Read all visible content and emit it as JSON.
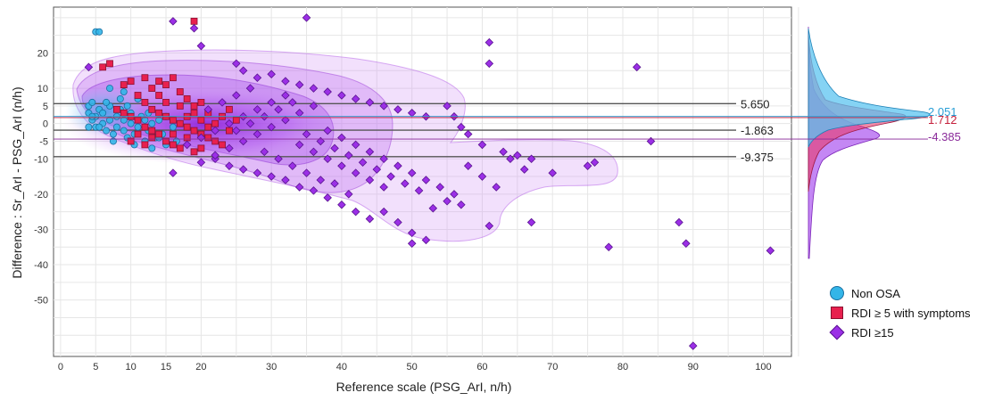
{
  "chart_data": {
    "type": "scatter",
    "xlabel": "Reference scale (PSG_ArI, n/h)",
    "ylabel": "Difference : Sr_ArI - PSG_ArI (n/h)",
    "xlim": [
      -1,
      104
    ],
    "ylim": [
      -66,
      33
    ],
    "x_ticks": [
      "0",
      "5",
      "10",
      "15",
      "20",
      "30",
      "40",
      "50",
      "60",
      "70",
      "80",
      "90",
      "100"
    ],
    "y_ticks": [
      "20",
      "10",
      "5",
      "0",
      "-5",
      "-10",
      "-20",
      "-30",
      "-40",
      "-50"
    ],
    "grid": true,
    "legend_position": "right-bottom",
    "reference_lines": [
      {
        "label": "5.650",
        "value": 5.65
      },
      {
        "label": "-1.863",
        "value": -1.863
      },
      {
        "label": "-9.375",
        "value": -9.375
      }
    ],
    "marginal_means": [
      {
        "label": "2.051",
        "value": 2.051,
        "color": "#2a9fd6"
      },
      {
        "label": "1.712",
        "value": 1.712,
        "color": "#c41e3a"
      },
      {
        "label": "-4.385",
        "value": -4.385,
        "color": "#8a2a9a"
      }
    ],
    "series": [
      {
        "name": "Non OSA",
        "marker": "circle",
        "color": "#33b5e8",
        "points": [
          [
            5,
            26
          ],
          [
            5.5,
            26
          ],
          [
            4,
            5
          ],
          [
            4.5,
            6
          ],
          [
            4,
            3
          ],
          [
            4.5,
            1
          ],
          [
            5,
            -1
          ],
          [
            5,
            2
          ],
          [
            5.5,
            4
          ],
          [
            6,
            0
          ],
          [
            6,
            3
          ],
          [
            6.5,
            -2
          ],
          [
            7,
            5
          ],
          [
            7,
            1
          ],
          [
            7.5,
            -3
          ],
          [
            8,
            2
          ],
          [
            8,
            -1
          ],
          [
            8.5,
            4
          ],
          [
            9,
            -2
          ],
          [
            9,
            1
          ],
          [
            9.5,
            -4
          ],
          [
            10,
            0
          ],
          [
            10,
            3
          ],
          [
            10.5,
            -3
          ],
          [
            11,
            -1
          ],
          [
            11.5,
            2
          ],
          [
            12,
            -5
          ],
          [
            12,
            1
          ],
          [
            12.5,
            -2
          ],
          [
            13,
            0
          ],
          [
            13.5,
            -4
          ],
          [
            14,
            1
          ],
          [
            14.5,
            -3
          ],
          [
            15,
            -6
          ],
          [
            15,
            2
          ],
          [
            16,
            -1
          ],
          [
            16.5,
            -5
          ],
          [
            17,
            0
          ],
          [
            11,
            7
          ],
          [
            9,
            9
          ],
          [
            7,
            10
          ],
          [
            4,
            -1
          ],
          [
            4.5,
            2
          ],
          [
            5.5,
            -1
          ],
          [
            6.5,
            6
          ],
          [
            7.5,
            -5
          ],
          [
            8.5,
            7
          ],
          [
            9.5,
            5
          ],
          [
            10.5,
            -6
          ],
          [
            12.5,
            3
          ],
          [
            13,
            -7
          ],
          [
            14,
            -4
          ]
        ]
      },
      {
        "name": "RDI ≥ 5 with symptoms",
        "marker": "square",
        "color": "#e8204e",
        "points": [
          [
            19,
            29
          ],
          [
            7,
            17
          ],
          [
            6,
            16
          ],
          [
            9,
            11
          ],
          [
            10,
            12
          ],
          [
            12,
            13
          ],
          [
            13,
            10
          ],
          [
            14,
            12
          ],
          [
            15,
            11
          ],
          [
            16,
            13
          ],
          [
            17,
            9
          ],
          [
            18,
            7
          ],
          [
            19,
            5
          ],
          [
            20,
            6
          ],
          [
            11,
            8
          ],
          [
            12,
            6
          ],
          [
            13,
            4
          ],
          [
            14,
            3
          ],
          [
            15,
            2
          ],
          [
            16,
            1
          ],
          [
            17,
            0
          ],
          [
            18,
            -1
          ],
          [
            19,
            -2
          ],
          [
            20,
            -3
          ],
          [
            21,
            -4
          ],
          [
            15,
            -5
          ],
          [
            16,
            -6
          ],
          [
            17,
            -7
          ],
          [
            18,
            -4
          ],
          [
            19,
            -8
          ],
          [
            14,
            -3
          ],
          [
            13,
            -2
          ],
          [
            12,
            -1
          ],
          [
            11,
            1
          ],
          [
            10,
            2
          ],
          [
            9,
            3
          ],
          [
            8,
            4
          ],
          [
            22,
            -5
          ],
          [
            23,
            -6
          ],
          [
            24,
            -2
          ],
          [
            25,
            1
          ],
          [
            21,
            3
          ],
          [
            22,
            0
          ],
          [
            20,
            -7
          ],
          [
            18,
            2
          ],
          [
            17,
            5
          ],
          [
            16,
            -3
          ],
          [
            15,
            6
          ],
          [
            14,
            8
          ],
          [
            13,
            -4
          ],
          [
            12,
            -6
          ],
          [
            11,
            -3
          ],
          [
            10,
            -5
          ],
          [
            19,
            3
          ],
          [
            20,
            1
          ],
          [
            21,
            -1
          ],
          [
            23,
            2
          ],
          [
            24,
            4
          ]
        ]
      },
      {
        "name": "RDI ≥15",
        "marker": "diamond",
        "color": "#9b2fe6",
        "points": [
          [
            35,
            30
          ],
          [
            16,
            29
          ],
          [
            19,
            27
          ],
          [
            20,
            22
          ],
          [
            4,
            16
          ],
          [
            61,
            23
          ],
          [
            61,
            17
          ],
          [
            82,
            16
          ],
          [
            25,
            17
          ],
          [
            26,
            15
          ],
          [
            28,
            13
          ],
          [
            30,
            14
          ],
          [
            32,
            12
          ],
          [
            34,
            11
          ],
          [
            36,
            10
          ],
          [
            38,
            9
          ],
          [
            40,
            8
          ],
          [
            42,
            7
          ],
          [
            44,
            6
          ],
          [
            46,
            5
          ],
          [
            48,
            4
          ],
          [
            50,
            3
          ],
          [
            52,
            2
          ],
          [
            55,
            5
          ],
          [
            56,
            2
          ],
          [
            57,
            -1
          ],
          [
            58,
            -3
          ],
          [
            60,
            -6
          ],
          [
            63,
            -8
          ],
          [
            65,
            -9
          ],
          [
            67,
            -10
          ],
          [
            70,
            -14
          ],
          [
            75,
            -12
          ],
          [
            76,
            -11
          ],
          [
            84,
            -5
          ],
          [
            22,
            -10
          ],
          [
            24,
            -12
          ],
          [
            26,
            -13
          ],
          [
            28,
            -14
          ],
          [
            30,
            -15
          ],
          [
            32,
            -16
          ],
          [
            34,
            -18
          ],
          [
            36,
            -19
          ],
          [
            38,
            -21
          ],
          [
            40,
            -23
          ],
          [
            42,
            -25
          ],
          [
            44,
            -27
          ],
          [
            46,
            -25
          ],
          [
            48,
            -28
          ],
          [
            50,
            -31
          ],
          [
            52,
            -33
          ],
          [
            50,
            -34
          ],
          [
            53,
            -24
          ],
          [
            55,
            -22
          ],
          [
            57,
            -23
          ],
          [
            61,
            -29
          ],
          [
            67,
            -28
          ],
          [
            78,
            -35
          ],
          [
            88,
            -28
          ],
          [
            89,
            -34
          ],
          [
            101,
            -36
          ],
          [
            90,
            -63
          ],
          [
            16,
            -14
          ],
          [
            20,
            -11
          ],
          [
            22,
            -9
          ],
          [
            24,
            -7
          ],
          [
            26,
            -5
          ],
          [
            28,
            -3
          ],
          [
            30,
            -1
          ],
          [
            32,
            1
          ],
          [
            34,
            3
          ],
          [
            36,
            5
          ],
          [
            38,
            -2
          ],
          [
            40,
            -4
          ],
          [
            42,
            -6
          ],
          [
            44,
            -8
          ],
          [
            46,
            -10
          ],
          [
            48,
            -12
          ],
          [
            50,
            -14
          ],
          [
            52,
            -16
          ],
          [
            54,
            -18
          ],
          [
            56,
            -20
          ],
          [
            58,
            -12
          ],
          [
            60,
            -15
          ],
          [
            62,
            -18
          ],
          [
            64,
            -10
          ],
          [
            66,
            -13
          ],
          [
            25,
            -2
          ],
          [
            27,
            0
          ],
          [
            29,
            2
          ],
          [
            31,
            4
          ],
          [
            33,
            6
          ],
          [
            35,
            -3
          ],
          [
            37,
            -5
          ],
          [
            39,
            -7
          ],
          [
            41,
            -9
          ],
          [
            43,
            -11
          ],
          [
            45,
            -13
          ],
          [
            47,
            -15
          ],
          [
            49,
            -17
          ],
          [
            51,
            -19
          ],
          [
            21,
            4
          ],
          [
            23,
            6
          ],
          [
            25,
            8
          ],
          [
            27,
            10
          ],
          [
            29,
            -8
          ],
          [
            31,
            -10
          ],
          [
            33,
            -12
          ],
          [
            35,
            -14
          ],
          [
            37,
            -16
          ],
          [
            39,
            -17
          ],
          [
            41,
            -20
          ],
          [
            18,
            -6
          ],
          [
            20,
            -4
          ],
          [
            22,
            -2
          ],
          [
            24,
            0
          ],
          [
            26,
            2
          ],
          [
            28,
            4
          ],
          [
            30,
            6
          ],
          [
            32,
            8
          ],
          [
            34,
            -6
          ],
          [
            36,
            -8
          ],
          [
            38,
            -10
          ],
          [
            40,
            -12
          ],
          [
            42,
            -14
          ],
          [
            44,
            -16
          ],
          [
            46,
            -18
          ]
        ]
      }
    ]
  }
}
